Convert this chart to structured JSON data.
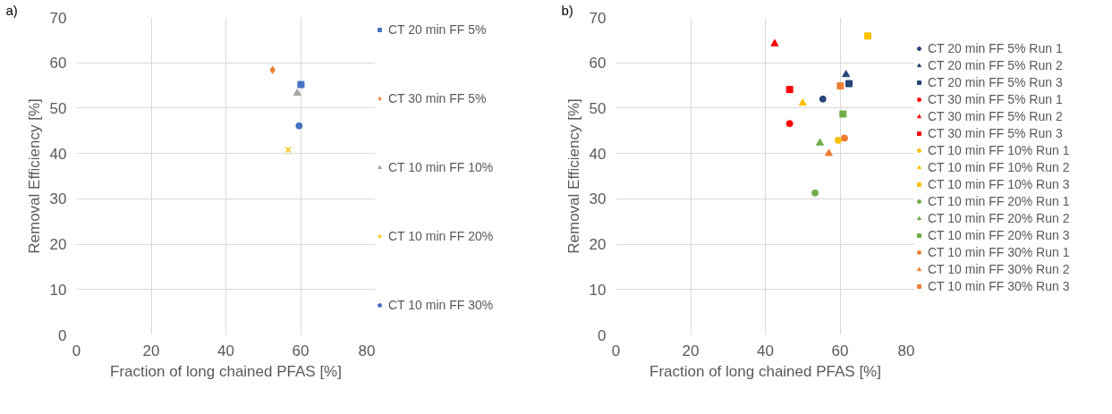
{
  "chart_data": [
    {
      "type": "scatter",
      "annotations": [
        "a)"
      ],
      "xlabel": "Fraction of long chained PFAS [%]",
      "ylabel": "Removal Efficiency [%]",
      "xlim": [
        0,
        80
      ],
      "ylim": [
        0,
        70
      ],
      "xticks": [
        0,
        20,
        40,
        60,
        80
      ],
      "yticks": [
        0,
        10,
        20,
        30,
        40,
        50,
        60,
        70
      ],
      "grid": true,
      "legend": "right",
      "series": [
        {
          "name": "CT 20 min FF 5%",
          "color": "#4472c4",
          "marker": "square",
          "x": [
            60.1
          ],
          "values": [
            55.2
          ]
        },
        {
          "name": "CT 30 min FF 5%",
          "color": "#ed7d31",
          "marker": "diamond",
          "x": [
            52.5
          ],
          "values": [
            58.4
          ]
        },
        {
          "name": "CT 10 min FF 10%",
          "color": "#a5a5a5",
          "marker": "triangle",
          "x": [
            59.1
          ],
          "values": [
            53.3
          ]
        },
        {
          "name": "CT 10 min FF 20%",
          "color": "#ffc000",
          "marker": "cross",
          "x": [
            56.7
          ],
          "values": [
            40.8
          ]
        },
        {
          "name": "CT 10 min FF 30%",
          "color": "#4472c4",
          "marker": "circle",
          "x": [
            59.6
          ],
          "values": [
            46.1
          ]
        }
      ]
    },
    {
      "type": "scatter",
      "annotations": [
        "b)"
      ],
      "xlabel": "Fraction of long chained PFAS [%]",
      "ylabel": "Removal Efficiency [%]",
      "xlim": [
        0,
        80
      ],
      "ylim": [
        0,
        70
      ],
      "xticks": [
        0,
        20,
        40,
        60,
        80
      ],
      "yticks": [
        0,
        10,
        20,
        30,
        40,
        50,
        60,
        70
      ],
      "grid": true,
      "legend": "right",
      "series": [
        {
          "name": "CT 20 min FF 5% Run 1",
          "color": "#264478",
          "marker": "circle",
          "x": [
            55.4
          ],
          "values": [
            52.0
          ]
        },
        {
          "name": "CT 20 min FF 5% Run 2",
          "color": "#264478",
          "marker": "triangle",
          "x": [
            61.6
          ],
          "values": [
            57.4
          ]
        },
        {
          "name": "CT 20 min FF 5% Run 3",
          "color": "#264478",
          "marker": "square",
          "x": [
            62.4
          ],
          "values": [
            55.4
          ]
        },
        {
          "name": "CT 30 min FF 5% Run 1",
          "color": "#ff0000",
          "marker": "circle",
          "x": [
            46.5
          ],
          "values": [
            46.6
          ]
        },
        {
          "name": "CT 30 min FF 5% Run 2",
          "color": "#ff0000",
          "marker": "triangle",
          "x": [
            42.5
          ],
          "values": [
            64.2
          ]
        },
        {
          "name": "CT 30 min FF 5% Run 3",
          "color": "#ff0000",
          "marker": "square",
          "x": [
            46.5
          ],
          "values": [
            54.1
          ]
        },
        {
          "name": "CT 10 min FF 10% Run 1",
          "color": "#ffc000",
          "marker": "circle",
          "x": [
            59.5
          ],
          "values": [
            42.9
          ]
        },
        {
          "name": "CT 10 min FF 10% Run 2",
          "color": "#ffc000",
          "marker": "triangle",
          "x": [
            50.0
          ],
          "values": [
            51.1
          ]
        },
        {
          "name": "CT 10 min FF 10% Run 3",
          "color": "#ffc000",
          "marker": "square",
          "x": [
            67.4
          ],
          "values": [
            65.9
          ]
        },
        {
          "name": "CT 10 min FF 20% Run 1",
          "color": "#70ad47",
          "marker": "circle",
          "x": [
            53.3
          ],
          "values": [
            31.3
          ]
        },
        {
          "name": "CT 10 min FF 20% Run 2",
          "color": "#70ad47",
          "marker": "triangle",
          "x": [
            54.6
          ],
          "values": [
            42.3
          ]
        },
        {
          "name": "CT 10 min FF 20% Run 3",
          "color": "#70ad47",
          "marker": "square",
          "x": [
            60.8
          ],
          "values": [
            48.7
          ]
        },
        {
          "name": "CT 10 min FF 30% Run 1",
          "color": "#ed7d31",
          "marker": "circle",
          "x": [
            61.2
          ],
          "values": [
            43.4
          ]
        },
        {
          "name": "CT 10 min FF 30% Run 2",
          "color": "#ed7d31",
          "marker": "triangle",
          "x": [
            57.0
          ],
          "values": [
            40.0
          ]
        },
        {
          "name": "CT 10 min FF 30% Run 3",
          "color": "#ed7d31",
          "marker": "square",
          "x": [
            60.1
          ],
          "values": [
            54.9
          ]
        }
      ]
    }
  ]
}
